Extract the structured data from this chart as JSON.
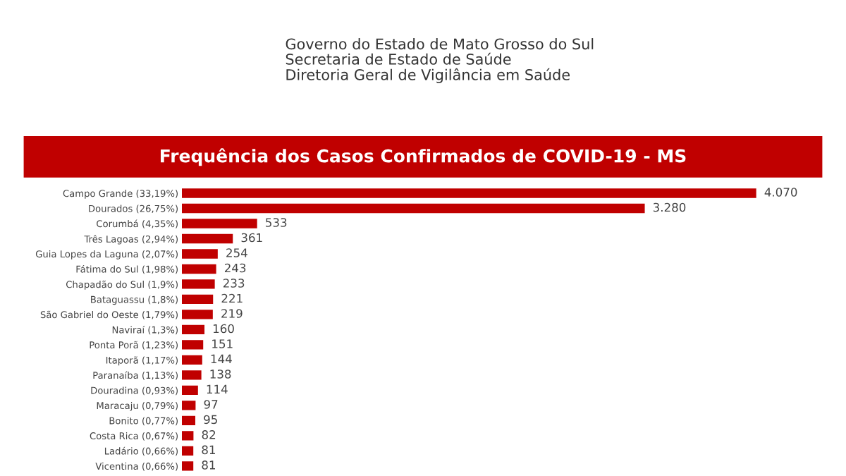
{
  "chart_data": {
    "type": "bar",
    "orientation": "horizontal",
    "title": "Frequência dos Casos Confirmados de COVID-19 - MS",
    "annotations": [
      "Governo do Estado de Mato Grosso do Sul",
      "Secretaria de Estado de Saúde",
      "Diretoria Geral de Vigilância em Saúde"
    ],
    "categories": [
      "Campo Grande (33,19%)",
      "Dourados (26,75%)",
      "Corumbá (4,35%)",
      "Três Lagoas (2,94%)",
      "Guia Lopes da Laguna (2,07%)",
      "Fátima do Sul (1,98%)",
      "Chapadão do Sul (1,9%)",
      "Bataguassu (1,8%)",
      "São Gabriel do Oeste (1,79%)",
      "Naviraí (1,3%)",
      "Ponta Porã (1,23%)",
      "Itaporã (1,17%)",
      "Paranaíba (1,13%)",
      "Douradina (0,93%)",
      "Maracaju (0,79%)",
      "Bonito (0,77%)",
      "Costa Rica (0,67%)",
      "Ladário (0,66%)",
      "Vicentina (0,66%)"
    ],
    "values": [
      4070,
      3280,
      533,
      361,
      254,
      243,
      233,
      221,
      219,
      160,
      151,
      144,
      138,
      114,
      97,
      95,
      82,
      81,
      81
    ],
    "value_labels": [
      "4.070",
      "3.280",
      "533",
      "361",
      "254",
      "243",
      "233",
      "221",
      "219",
      "160",
      "151",
      "144",
      "138",
      "114",
      "97",
      "95",
      "82",
      "81",
      "81"
    ],
    "color": "#c00000",
    "grid": false,
    "legend": false
  }
}
